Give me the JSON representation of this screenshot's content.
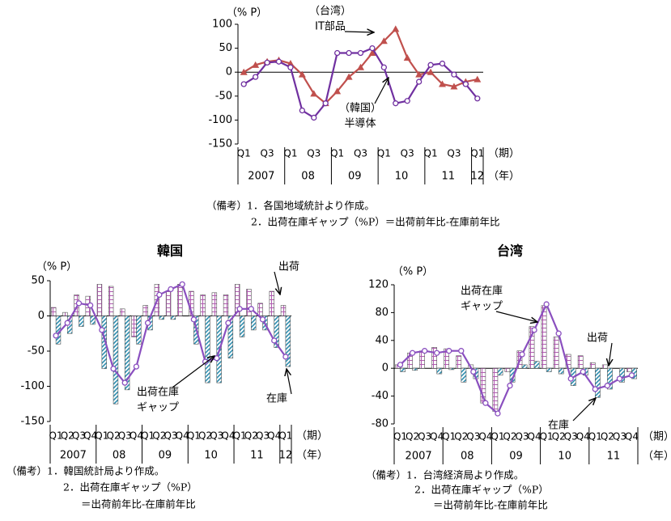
{
  "chart_data": [
    {
      "type": "line",
      "y_unit": "（% P）",
      "period_label": "（期）",
      "year_label": "（年）",
      "categories": [
        "Q1",
        null,
        "Q3",
        null,
        "Q1",
        null,
        "Q3",
        null,
        "Q1",
        null,
        "Q3",
        null,
        "Q1",
        null,
        "Q3",
        null,
        "Q1",
        null,
        "Q3",
        null,
        "Q1"
      ],
      "years": [
        "2007",
        "08",
        "09",
        "10",
        "11",
        "12"
      ],
      "ylim": [
        -150,
        100
      ],
      "yticks": [
        100,
        50,
        0,
        -50,
        -100,
        -150
      ],
      "series": [
        {
          "color": "#c0504d",
          "marker": "triangle",
          "values": [
            0,
            15,
            22,
            25,
            18,
            -5,
            -45,
            -65,
            -40,
            -10,
            10,
            40,
            65,
            90,
            30,
            -5,
            0,
            -25,
            -30,
            -20,
            -15
          ]
        },
        {
          "color": "#7030a0",
          "marker": "circle",
          "values": [
            -25,
            -10,
            20,
            22,
            10,
            -80,
            -95,
            -65,
            40,
            40,
            40,
            50,
            10,
            -65,
            -60,
            -20,
            15,
            18,
            -5,
            -25,
            -55
          ]
        }
      ],
      "annotations": [
        {
          "lines": [
            "（台湾）",
            "IT部品"
          ]
        },
        {
          "lines": [
            "（韓国）",
            "半導体"
          ]
        }
      ],
      "notes": [
        "（備考）1．各国地域統計より作成。",
        "2．出荷在庫ギャップ（%P）＝出荷前年比-在庫前年比"
      ]
    },
    {
      "type": "bar",
      "title": "韓国",
      "y_unit": "（% P）",
      "period_label": "（期）",
      "year_label": "（年）",
      "categories": [
        "Q1",
        "Q2",
        "Q3",
        "Q4",
        "Q1",
        "Q2",
        "Q3",
        "Q4",
        "Q1",
        "Q2",
        "Q3",
        "Q4",
        "Q1",
        "Q2",
        "Q3",
        "Q4",
        "Q1",
        "Q2",
        "Q3",
        "Q4",
        "Q1"
      ],
      "years": [
        "2007",
        "08",
        "09",
        "10",
        "11",
        "12"
      ],
      "ylim": [
        -150,
        50
      ],
      "yticks": [
        50,
        0,
        -50,
        -100,
        -150
      ],
      "series": [
        {
          "kind": "bar",
          "pattern": "check",
          "color": "#b05cb0",
          "values": [
            12,
            5,
            30,
            28,
            45,
            42,
            10,
            -30,
            15,
            45,
            35,
            45,
            35,
            30,
            33,
            30,
            45,
            38,
            18,
            35,
            15
          ]
        },
        {
          "kind": "bar",
          "pattern": "hatch",
          "color": "#2f8fb0",
          "values": [
            -40,
            -25,
            -15,
            -12,
            -75,
            -125,
            -105,
            -40,
            -20,
            -5,
            -5,
            0,
            -40,
            -95,
            -95,
            -60,
            -30,
            -20,
            -20,
            -45,
            -72
          ]
        },
        {
          "kind": "line",
          "marker": "circle",
          "color": "#8a4fbf",
          "values": [
            -28,
            -10,
            18,
            15,
            -20,
            -75,
            -95,
            -72,
            -10,
            30,
            38,
            45,
            -5,
            -65,
            -60,
            -10,
            10,
            10,
            -5,
            -35,
            -58
          ]
        }
      ],
      "annotations": [
        {
          "lines": [
            "出荷"
          ]
        },
        {
          "lines": [
            "出荷在庫",
            "ギャップ"
          ]
        },
        {
          "lines": [
            "在庫"
          ]
        }
      ],
      "notes": [
        "（備考）1．韓国統計局より作成。",
        "2．出荷在庫ギャップ（%P）",
        "＝出荷前年比-在庫前年比"
      ]
    },
    {
      "type": "bar",
      "title": "台湾",
      "y_unit": "（% P）",
      "period_label": "（期）",
      "year_label": "（年）",
      "categories": [
        "Q1",
        "Q2",
        "Q3",
        "Q4",
        "Q1",
        "Q2",
        "Q3",
        "Q4",
        "Q1",
        "Q2",
        "Q3",
        "Q4",
        "Q1",
        "Q2",
        "Q3",
        "Q4",
        "Q1",
        "Q2",
        "Q3",
        "Q4"
      ],
      "years": [
        "2007",
        "08",
        "09",
        "10",
        "11"
      ],
      "ylim": [
        -80,
        120
      ],
      "yticks": [
        120,
        80,
        40,
        0,
        -40,
        -80
      ],
      "series": [
        {
          "kind": "bar",
          "pattern": "check",
          "color": "#b05cb0",
          "values": [
            5,
            22,
            25,
            30,
            28,
            18,
            5,
            -50,
            -62,
            -5,
            25,
            60,
            90,
            45,
            20,
            18,
            8,
            5,
            0,
            -5
          ]
        },
        {
          "kind": "bar",
          "pattern": "hatch",
          "color": "#2f8fb0",
          "values": [
            -5,
            -3,
            0,
            -8,
            -2,
            -20,
            -15,
            0,
            -10,
            -20,
            5,
            10,
            -5,
            -8,
            -25,
            -10,
            -42,
            -30,
            -20,
            -15
          ]
        },
        {
          "kind": "line",
          "marker": "circle",
          "color": "#8a4fbf",
          "values": [
            5,
            22,
            25,
            22,
            25,
            25,
            -5,
            -50,
            -65,
            -25,
            20,
            55,
            92,
            50,
            -15,
            -5,
            -30,
            -25,
            -15,
            -10
          ]
        }
      ],
      "annotations": [
        {
          "lines": [
            "出荷在庫",
            "ギャップ"
          ]
        },
        {
          "lines": [
            "出荷"
          ]
        },
        {
          "lines": [
            "在庫"
          ]
        }
      ],
      "notes": [
        "（備考）1．台湾経済局より作成。",
        "2．出荷在庫ギャップ（%P）",
        "＝出荷前年比-在庫前年比"
      ]
    }
  ]
}
